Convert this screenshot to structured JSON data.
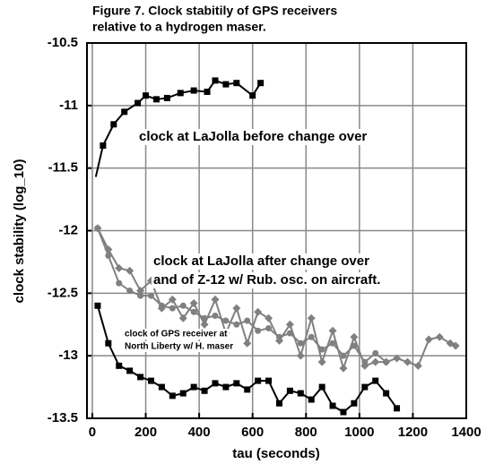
{
  "chart_data": {
    "type": "line",
    "title": [
      "Figure 7.  Clock stabitily of GPS receivers",
      "relative to a hydrogen maser."
    ],
    "x_label": "tau (seconds)",
    "y_label": "clock stability (log_10)",
    "annotations": [
      "clock at LaJolla before change over",
      "clock at LaJolla after change over",
      "and  of  Z-12 w/ Rub. osc. on aircraft.",
      "clock of GPS receiver at",
      "North Liberty w/ H. maser"
    ],
    "xlim": [
      -20,
      1400
    ],
    "ylim": [
      -13.5,
      -10.5
    ],
    "xticks": [
      0,
      200,
      400,
      600,
      800,
      1000,
      1200,
      1400
    ],
    "yticks": [
      -10.5,
      -11,
      -11.5,
      -12,
      -12.5,
      -13,
      -13.5
    ],
    "grid": true,
    "series": [
      {
        "color": "#000000",
        "marker": "square",
        "x": [
          13,
          40,
          80,
          120,
          170,
          200,
          240,
          280,
          330,
          380,
          430,
          460,
          500,
          540,
          600,
          630
        ],
        "values": [
          -11.57,
          -11.32,
          -11.15,
          -11.05,
          -10.98,
          -10.92,
          -10.95,
          -10.94,
          -10.9,
          -10.88,
          -10.89,
          -10.8,
          -10.83,
          -10.82,
          -10.92,
          -10.82
        ]
      },
      {
        "color": "#808080",
        "marker": "circle",
        "x": [
          20,
          60,
          100,
          140,
          180,
          220,
          260,
          300,
          340,
          380,
          420,
          460,
          500,
          540,
          580,
          620,
          660,
          700,
          740,
          780,
          820,
          860,
          900,
          940,
          980,
          1020,
          1060,
          1100
        ],
        "values": [
          -11.98,
          -12.2,
          -12.42,
          -12.48,
          -12.52,
          -12.52,
          -12.6,
          -12.62,
          -12.6,
          -12.65,
          -12.7,
          -12.68,
          -12.72,
          -12.75,
          -12.72,
          -12.8,
          -12.78,
          -12.85,
          -12.82,
          -12.9,
          -12.85,
          -12.95,
          -12.9,
          -13.0,
          -12.92,
          -13.05,
          -12.98,
          -13.05
        ]
      },
      {
        "color": "#808080",
        "marker": "diamond",
        "x": [
          20,
          60,
          100,
          140,
          180,
          220,
          260,
          300,
          340,
          380,
          420,
          460,
          500,
          540,
          580,
          620,
          660,
          700,
          740,
          780,
          820,
          860,
          900,
          940,
          980,
          1020,
          1060,
          1100,
          1140,
          1180,
          1220,
          1260,
          1300,
          1340,
          1360
        ],
        "values": [
          -11.98,
          -12.15,
          -12.3,
          -12.32,
          -12.48,
          -12.4,
          -12.62,
          -12.55,
          -12.7,
          -12.58,
          -12.75,
          -12.55,
          -12.82,
          -12.62,
          -12.9,
          -12.65,
          -12.7,
          -12.88,
          -12.75,
          -13.0,
          -12.7,
          -13.05,
          -12.8,
          -13.1,
          -12.85,
          -13.08,
          -13.05,
          -13.05,
          -13.02,
          -13.05,
          -13.08,
          -12.87,
          -12.85,
          -12.9,
          -12.92
        ]
      },
      {
        "color": "#000000",
        "marker": "square",
        "x": [
          20,
          60,
          100,
          140,
          180,
          220,
          260,
          300,
          340,
          380,
          420,
          460,
          500,
          540,
          580,
          620,
          660,
          700,
          740,
          780,
          820,
          860,
          900,
          940,
          980,
          1020,
          1060,
          1100,
          1140
        ],
        "values": [
          -12.6,
          -12.9,
          -13.08,
          -13.12,
          -13.17,
          -13.2,
          -13.25,
          -13.32,
          -13.3,
          -13.25,
          -13.28,
          -13.22,
          -13.25,
          -13.22,
          -13.27,
          -13.2,
          -13.2,
          -13.38,
          -13.28,
          -13.3,
          -13.35,
          -13.25,
          -13.4,
          -13.45,
          -13.38,
          -13.25,
          -13.2,
          -13.3,
          -13.42
        ]
      }
    ]
  }
}
